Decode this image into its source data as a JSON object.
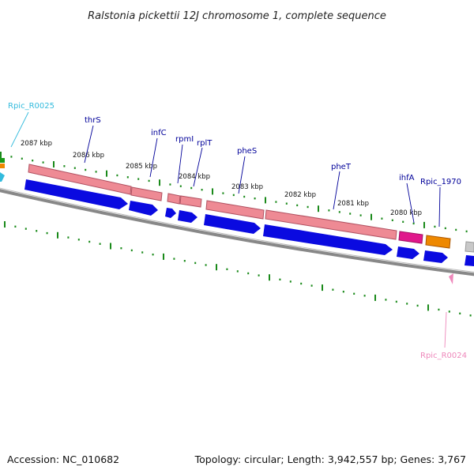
{
  "title": "Ralstonia pickettii 12J chromosome 1, complete sequence",
  "footer": {
    "accession": "Accession: NC_010682",
    "summary": "Topology: circular; Length: 3,942,557 bp; Genes: 3,767"
  },
  "colors": {
    "backbone": "#7a7a7a",
    "rna_bar": "#ee8a94",
    "cds_arrow": "#0a0ae0",
    "tick": "#1a8a1a",
    "gene_label": "#000099",
    "locus_top": "#33bbdd",
    "locus_bottom": "#ee88bb",
    "ihfA": "#e0188c",
    "rpic1970": "#ee8800"
  },
  "kbp_labels": [
    "2087 kbp",
    "2086 kbp",
    "2085 kbp",
    "2084 kbp",
    "2083 kbp",
    "2082 kbp",
    "2081 kbp",
    "2080 kbp"
  ],
  "gene_labels": [
    "thrS",
    "infC",
    "rpmI",
    "rplT",
    "pheS",
    "pheT",
    "ihfA",
    "Rpic_1970"
  ],
  "locus_labels": {
    "top": "Rpic_R0025",
    "bottom": "Rpic_R0024"
  }
}
